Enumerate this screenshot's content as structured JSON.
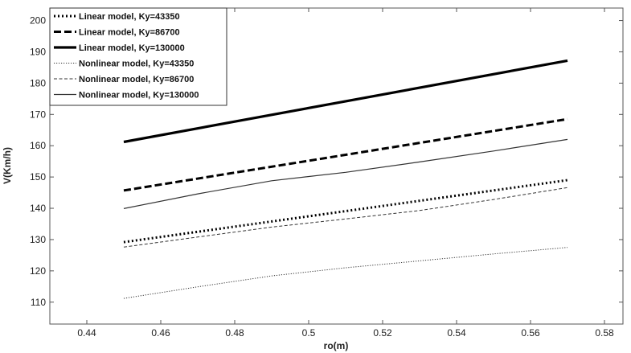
{
  "chart_data": {
    "type": "line",
    "xlabel": "ro(m)",
    "ylabel": "V(Km/h)",
    "xlim": [
      0.43,
      0.585
    ],
    "ylim": [
      103,
      204
    ],
    "xticks": [
      0.44,
      0.46,
      0.48,
      0.5,
      0.52,
      0.54,
      0.56,
      0.58
    ],
    "xtick_labels": [
      "0.44",
      "0.46",
      "0.48",
      "0.5",
      "0.52",
      "0.54",
      "0.56",
      "0.58"
    ],
    "yticks": [
      110,
      120,
      130,
      140,
      150,
      160,
      170,
      180,
      190,
      200
    ],
    "ytick_labels": [
      "110",
      "120",
      "130",
      "140",
      "150",
      "160",
      "170",
      "180",
      "190",
      "200"
    ],
    "grid": false,
    "legend_position": "top-left",
    "series": [
      {
        "name": "Linear model, Ky=43350",
        "style": "dotted-thick",
        "color": "#000000",
        "x": [
          0.45,
          0.57
        ],
        "y": [
          129.2,
          149.0
        ]
      },
      {
        "name": "Linear model, Ky=86700",
        "style": "dashed-thick",
        "color": "#000000",
        "x": [
          0.45,
          0.57
        ],
        "y": [
          145.7,
          168.5
        ]
      },
      {
        "name": "Linear model, Ky=130000",
        "style": "solid-thick",
        "color": "#000000",
        "x": [
          0.45,
          0.57
        ],
        "y": [
          161.2,
          187.2
        ]
      },
      {
        "name": "Nonlinear model, Ky=43350",
        "style": "dotted-thin",
        "color": "#333333",
        "x": [
          0.45,
          0.47,
          0.49,
          0.51,
          0.53,
          0.55,
          0.57
        ],
        "y": [
          111.2,
          114.9,
          118.4,
          121.0,
          123.2,
          125.4,
          127.5
        ]
      },
      {
        "name": "Nonlinear model, Ky=86700",
        "style": "dashed-thin",
        "color": "#333333",
        "x": [
          0.45,
          0.47,
          0.49,
          0.51,
          0.53,
          0.55,
          0.57
        ],
        "y": [
          127.6,
          130.8,
          134.0,
          136.6,
          139.3,
          142.8,
          146.6
        ]
      },
      {
        "name": "Nonlinear model, Ky=130000",
        "style": "solid-thin",
        "color": "#333333",
        "x": [
          0.45,
          0.47,
          0.49,
          0.51,
          0.53,
          0.55,
          0.57
        ],
        "y": [
          139.9,
          144.6,
          148.8,
          151.5,
          154.8,
          158.3,
          162.0
        ]
      }
    ]
  }
}
